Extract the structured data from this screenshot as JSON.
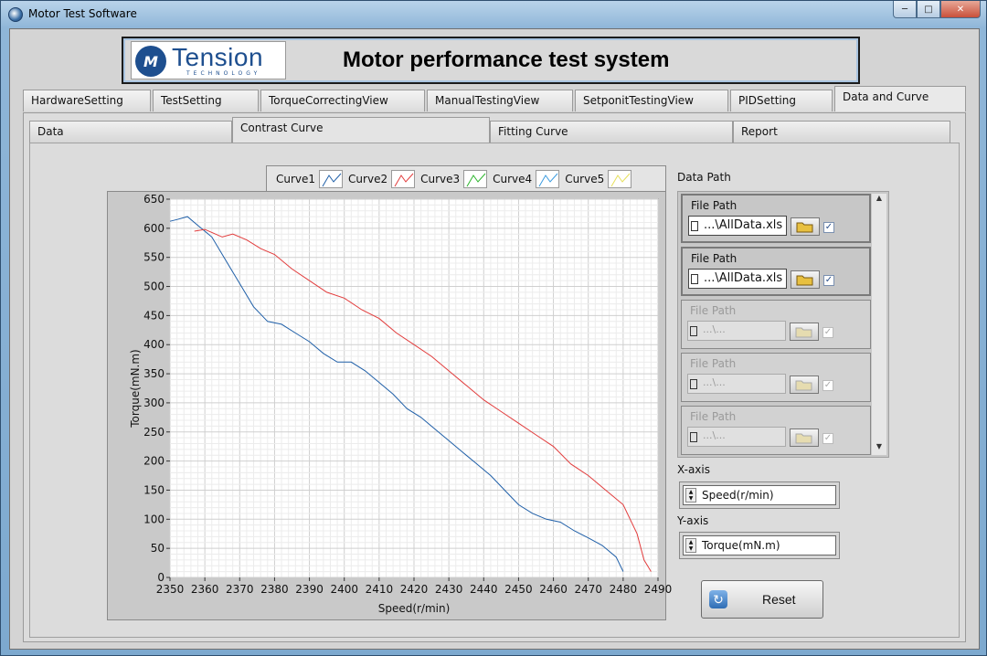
{
  "window": {
    "title": "Motor Test Software",
    "buttons": [
      "minimize",
      "maximize",
      "close"
    ]
  },
  "banner": {
    "logo_text": "Tension",
    "logo_subtext": "TECHNOLOGY",
    "title": "Motor performance test system"
  },
  "tabs": [
    {
      "label": "HardwareSetting",
      "active": false
    },
    {
      "label": "TestSetting",
      "active": false
    },
    {
      "label": "TorqueCorrectingView",
      "active": false
    },
    {
      "label": "ManualTestingView",
      "active": false
    },
    {
      "label": "SetponitTestingView",
      "active": false
    },
    {
      "label": "PIDSetting",
      "active": false
    },
    {
      "label": "Data and Curve",
      "active": true
    }
  ],
  "subtabs": [
    {
      "label": "Data",
      "active": false
    },
    {
      "label": "Contrast Curve",
      "active": true
    },
    {
      "label": "Fitting Curve",
      "active": false
    },
    {
      "label": "Report",
      "active": false
    }
  ],
  "legend": [
    {
      "name": "Curve1",
      "color": "#1f5fa8"
    },
    {
      "name": "Curve2",
      "color": "#e23c3c"
    },
    {
      "name": "Curve3",
      "color": "#2bb52b"
    },
    {
      "name": "Curve4",
      "color": "#3a9be0"
    },
    {
      "name": "Curve5",
      "color": "#e6e05a"
    }
  ],
  "data_path": {
    "label": "Data Path",
    "items": [
      {
        "label": "File Path",
        "value": "...\\AllData.xls",
        "enabled": true,
        "checked": true
      },
      {
        "label": "File Path",
        "value": "...\\AllData.xls",
        "enabled": true,
        "checked": true
      },
      {
        "label": "File Path",
        "value": "...\\...",
        "enabled": false,
        "checked": true
      },
      {
        "label": "File Path",
        "value": "...\\...",
        "enabled": false,
        "checked": true
      },
      {
        "label": "File Path",
        "value": "...\\...",
        "enabled": false,
        "checked": true
      }
    ]
  },
  "x_axis": {
    "label": "X-axis",
    "value": "Speed(r/min)"
  },
  "y_axis": {
    "label": "Y-axis",
    "value": "Torque(mN.m)"
  },
  "reset": {
    "label": "Reset"
  },
  "chart_data": {
    "type": "line",
    "title": "",
    "xlabel": "Speed(r/min)",
    "ylabel": "Torque(mN.m)",
    "xlim": [
      2350,
      2490
    ],
    "ylim": [
      0,
      650
    ],
    "xticks": [
      2350,
      2360,
      2370,
      2380,
      2390,
      2400,
      2410,
      2420,
      2430,
      2440,
      2450,
      2460,
      2470,
      2480,
      2490
    ],
    "yticks": [
      0,
      50,
      100,
      150,
      200,
      250,
      300,
      350,
      400,
      450,
      500,
      550,
      600,
      650
    ],
    "grid": true,
    "series": [
      {
        "name": "Curve1",
        "color": "#1f5fa8",
        "x": [
          2350,
          2352,
          2355,
          2358,
          2362,
          2366,
          2370,
          2374,
          2378,
          2382,
          2386,
          2390,
          2394,
          2398,
          2402,
          2406,
          2410,
          2414,
          2418,
          2422,
          2426,
          2430,
          2434,
          2438,
          2442,
          2446,
          2450,
          2454,
          2458,
          2462,
          2466,
          2470,
          2474,
          2478,
          2480
        ],
        "y": [
          612,
          615,
          620,
          605,
          585,
          545,
          505,
          465,
          440,
          435,
          420,
          405,
          385,
          370,
          370,
          355,
          335,
          315,
          290,
          275,
          255,
          235,
          215,
          195,
          175,
          150,
          125,
          110,
          100,
          95,
          80,
          68,
          55,
          35,
          10
        ]
      },
      {
        "name": "Curve2",
        "color": "#e23c3c",
        "x": [
          2357,
          2360,
          2365,
          2368,
          2372,
          2376,
          2380,
          2385,
          2390,
          2395,
          2400,
          2405,
          2410,
          2415,
          2420,
          2425,
          2430,
          2435,
          2440,
          2445,
          2450,
          2455,
          2460,
          2465,
          2470,
          2475,
          2480,
          2484,
          2486,
          2487,
          2488
        ],
        "y": [
          595,
          598,
          585,
          590,
          580,
          565,
          555,
          530,
          510,
          490,
          480,
          460,
          445,
          420,
          400,
          380,
          355,
          330,
          305,
          285,
          265,
          245,
          225,
          195,
          175,
          150,
          125,
          75,
          30,
          20,
          10
        ]
      }
    ]
  }
}
